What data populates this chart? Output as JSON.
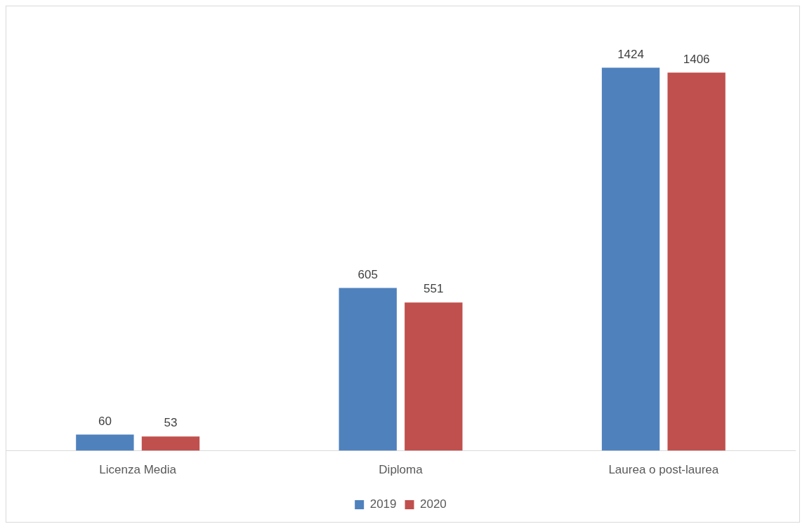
{
  "chart_data": {
    "type": "bar",
    "categories": [
      "Licenza Media",
      "Diploma",
      "Laurea o post-laurea"
    ],
    "series": [
      {
        "name": "2019",
        "color": "#4f81bd",
        "values": [
          60,
          605,
          1424
        ]
      },
      {
        "name": "2020",
        "color": "#c0504d",
        "values": [
          53,
          551,
          1406
        ]
      }
    ],
    "data_labels": true,
    "legend": "bottom",
    "grid": false
  }
}
